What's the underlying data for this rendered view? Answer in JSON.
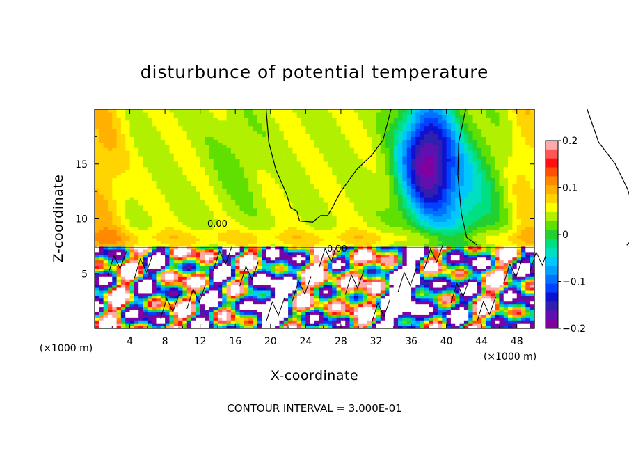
{
  "chart_data": {
    "type": "heatmap",
    "title": "disturbunce of potential temperature",
    "xlabel": "X-coordinate",
    "ylabel": "Z-coordinate",
    "x_unit": "(×1000 m)",
    "z_unit": "(×1000 m)",
    "xlim": [
      0,
      50
    ],
    "ylim": [
      0,
      20
    ],
    "x_ticks": [
      4,
      8,
      12,
      16,
      20,
      24,
      28,
      32,
      36,
      40,
      44,
      48
    ],
    "y_ticks": [
      5,
      10,
      15
    ],
    "colorbar": {
      "range": [
        -0.2,
        0.2
      ],
      "tick_values": [
        0.2,
        0.1,
        0,
        -0.1,
        -0.2
      ],
      "tick_labels": [
        "0.2",
        "0.1",
        "0",
        "−0.1",
        "−0.2"
      ],
      "colors": [
        "#ffaaaa",
        "#ff5555",
        "#ff1010",
        "#ff4f00",
        "#ff8a00",
        "#ffb000",
        "#ffd400",
        "#ffff00",
        "#b0f000",
        "#60e000",
        "#22d030",
        "#00e080",
        "#00e0c0",
        "#00c8ff",
        "#00a0ff",
        "#0070ff",
        "#0040ff",
        "#1010d0",
        "#3020b0",
        "#6010b0",
        "#8000a0"
      ]
    },
    "contour_labels": [
      "0.00",
      "0.00"
    ],
    "footer": "CONTOUR INTERVAL = 3.000E-01"
  }
}
